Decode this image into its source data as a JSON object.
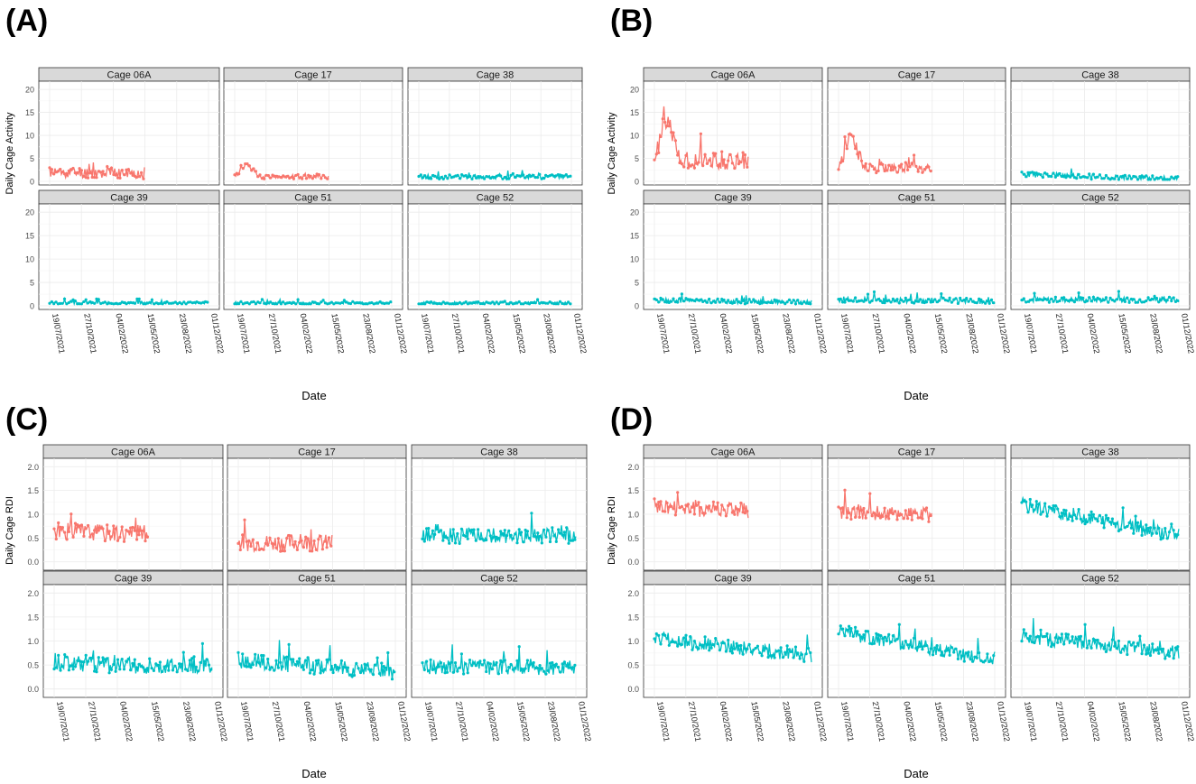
{
  "colors": {
    "red": "#f8766d",
    "teal": "#00bfc4",
    "strip": "#d9d9d9",
    "grid": "#ebebeb"
  },
  "date_ticks": [
    "19/07/2021",
    "27/10/2021",
    "04/02/2022",
    "15/05/2022",
    "23/08/2022",
    "01/12/2022"
  ],
  "chart_data": [
    {
      "panel": "(A)",
      "type": "line",
      "xlabel": "Date",
      "ylabel": "Daily Cage Activity",
      "ylim": [
        0,
        21
      ],
      "yticks": [
        0,
        5,
        10,
        15,
        20
      ],
      "facets": [
        {
          "title": "Cage 06A",
          "color": "red",
          "end": 0.6,
          "base": 2.0,
          "noise": 1.2,
          "trend": -0.6,
          "seed": 11
        },
        {
          "title": "Cage 17",
          "color": "red",
          "end": 0.6,
          "base": 1.0,
          "noise": 0.5,
          "trend": 0,
          "bump": 2.5,
          "seed": 12
        },
        {
          "title": "Cage 38",
          "color": "teal",
          "end": 1.0,
          "base": 1.0,
          "noise": 0.5,
          "trend": 0,
          "seed": 13
        },
        {
          "title": "Cage 39",
          "color": "teal",
          "end": 1.0,
          "base": 0.6,
          "noise": 0.3,
          "trend": 0,
          "seed": 14
        },
        {
          "title": "Cage 51",
          "color": "teal",
          "end": 1.0,
          "base": 0.6,
          "noise": 0.3,
          "trend": 0,
          "seed": 15
        },
        {
          "title": "Cage 52",
          "color": "teal",
          "end": 1.0,
          "base": 0.6,
          "noise": 0.3,
          "trend": 0,
          "seed": 16
        }
      ]
    },
    {
      "panel": "(B)",
      "type": "line",
      "xlabel": "Date",
      "ylabel": "Daily Cage Activity",
      "ylim": [
        0,
        21
      ],
      "yticks": [
        0,
        5,
        10,
        15,
        20
      ],
      "facets": [
        {
          "title": "Cage 06A",
          "color": "red",
          "end": 0.6,
          "base": 5.0,
          "noise": 2.0,
          "trend": -1,
          "bump": 8,
          "seed": 21
        },
        {
          "title": "Cage 17",
          "color": "red",
          "end": 0.6,
          "base": 3.0,
          "noise": 1.2,
          "trend": 0,
          "bump": 7,
          "seed": 22
        },
        {
          "title": "Cage 38",
          "color": "teal",
          "end": 1.0,
          "base": 1.5,
          "noise": 0.6,
          "trend": -1,
          "seed": 23
        },
        {
          "title": "Cage 39",
          "color": "teal",
          "end": 1.0,
          "base": 1.2,
          "noise": 0.5,
          "trend": -0.5,
          "seed": 24
        },
        {
          "title": "Cage 51",
          "color": "teal",
          "end": 1.0,
          "base": 1.3,
          "noise": 0.6,
          "trend": -0.3,
          "seed": 25
        },
        {
          "title": "Cage 52",
          "color": "teal",
          "end": 1.0,
          "base": 1.3,
          "noise": 0.6,
          "trend": 0,
          "seed": 26
        }
      ]
    },
    {
      "panel": "(C)",
      "type": "line",
      "xlabel": "Date",
      "ylabel": "Daily Cage RDI",
      "ylim": [
        -0.1,
        2.1
      ],
      "yticks": [
        0.0,
        0.5,
        1.0,
        1.5,
        2.0
      ],
      "facets": [
        {
          "title": "Cage 06A",
          "color": "red",
          "end": 0.6,
          "base": 0.65,
          "noise": 0.18,
          "trend": -0.1,
          "seed": 31
        },
        {
          "title": "Cage 17",
          "color": "red",
          "end": 0.6,
          "base": 0.4,
          "noise": 0.18,
          "trend": 0,
          "seed": 32
        },
        {
          "title": "Cage 38",
          "color": "teal",
          "end": 1.0,
          "base": 0.55,
          "noise": 0.17,
          "trend": 0,
          "seed": 33
        },
        {
          "title": "Cage 39",
          "color": "teal",
          "end": 1.0,
          "base": 0.55,
          "noise": 0.18,
          "trend": -0.1,
          "seed": 34
        },
        {
          "title": "Cage 51",
          "color": "teal",
          "end": 1.0,
          "base": 0.6,
          "noise": 0.17,
          "trend": -0.25,
          "seed": 35
        },
        {
          "title": "Cage 52",
          "color": "teal",
          "end": 1.0,
          "base": 0.45,
          "noise": 0.16,
          "trend": 0,
          "seed": 36
        }
      ]
    },
    {
      "panel": "(D)",
      "type": "line",
      "xlabel": "Date",
      "ylabel": "Daily Cage RDI",
      "ylim": [
        -0.1,
        2.1
      ],
      "yticks": [
        0.0,
        0.5,
        1.0,
        1.5,
        2.0
      ],
      "facets": [
        {
          "title": "Cage 06A",
          "color": "red",
          "end": 0.6,
          "base": 1.15,
          "noise": 0.18,
          "trend": -0.1,
          "seed": 41
        },
        {
          "title": "Cage 17",
          "color": "red",
          "end": 0.6,
          "base": 1.05,
          "noise": 0.16,
          "trend": -0.1,
          "seed": 42
        },
        {
          "title": "Cage 38",
          "color": "teal",
          "end": 1.0,
          "base": 1.2,
          "noise": 0.15,
          "trend": -0.65,
          "seed": 43
        },
        {
          "title": "Cage 39",
          "color": "teal",
          "end": 1.0,
          "base": 1.05,
          "noise": 0.15,
          "trend": -0.35,
          "seed": 44
        },
        {
          "title": "Cage 51",
          "color": "teal",
          "end": 1.0,
          "base": 1.2,
          "noise": 0.15,
          "trend": -0.6,
          "seed": 45
        },
        {
          "title": "Cage 52",
          "color": "teal",
          "end": 1.0,
          "base": 1.1,
          "noise": 0.15,
          "trend": -0.35,
          "seed": 46
        }
      ]
    }
  ]
}
